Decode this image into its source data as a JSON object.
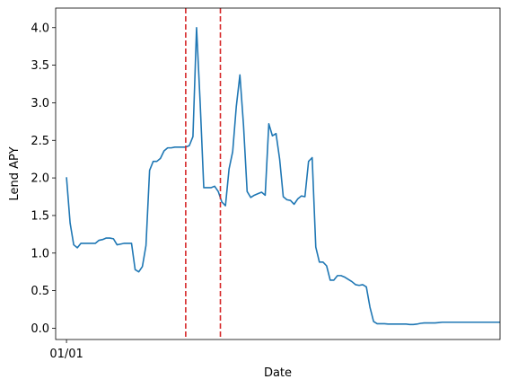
{
  "chart_data": {
    "type": "line",
    "title": "",
    "xlabel": "Date",
    "ylabel": "Lend APY",
    "x_tick_labels": [
      {
        "x": 0,
        "label": "01/01"
      }
    ],
    "xlim": [
      -3,
      120
    ],
    "ylim": [
      -0.15,
      4.26
    ],
    "y_ticks": [
      0.0,
      0.5,
      1.0,
      1.5,
      2.0,
      2.5,
      3.0,
      3.5,
      4.0
    ],
    "grid": false,
    "legend": "none",
    "series": [
      {
        "color": "#1f77b4",
        "x": [
          0,
          1,
          2,
          3,
          4,
          5,
          6,
          7,
          8,
          9,
          10,
          11,
          12,
          13,
          14,
          15,
          16,
          17,
          18,
          19,
          20,
          21,
          22,
          23,
          24,
          25,
          26,
          27,
          28,
          29,
          30,
          31,
          32,
          33,
          34,
          35,
          36,
          37,
          38,
          39,
          40,
          41,
          42,
          43,
          44,
          45,
          46,
          47,
          48,
          49,
          50,
          51,
          52,
          53,
          54,
          55,
          56,
          57,
          58,
          59,
          60,
          61,
          62,
          63,
          64,
          65,
          66,
          67,
          68,
          69,
          70,
          71,
          72,
          73,
          74,
          75,
          76,
          77,
          78,
          79,
          80,
          81,
          82,
          83,
          84,
          85,
          86,
          87,
          88,
          89,
          90,
          91,
          92,
          93,
          94,
          95,
          96,
          97,
          98,
          99,
          100,
          101,
          102,
          103,
          104,
          105,
          106,
          107,
          108,
          109,
          110,
          111,
          112,
          113,
          114,
          115,
          116,
          117,
          118,
          119,
          120
        ],
        "values": [
          2.01,
          1.4,
          1.11,
          1.07,
          1.13,
          1.13,
          1.13,
          1.13,
          1.13,
          1.17,
          1.18,
          1.2,
          1.2,
          1.19,
          1.11,
          1.12,
          1.13,
          1.13,
          1.13,
          0.78,
          0.75,
          0.82,
          1.1,
          2.1,
          2.22,
          2.22,
          2.26,
          2.36,
          2.4,
          2.4,
          2.41,
          2.41,
          2.41,
          2.41,
          2.43,
          2.55,
          4.0,
          3.0,
          1.87,
          1.87,
          1.87,
          1.89,
          1.82,
          1.68,
          1.63,
          2.12,
          2.35,
          2.95,
          3.37,
          2.7,
          1.82,
          1.74,
          1.77,
          1.79,
          1.81,
          1.77,
          2.72,
          2.56,
          2.59,
          2.25,
          1.75,
          1.71,
          1.7,
          1.65,
          1.72,
          1.76,
          1.75,
          2.22,
          2.27,
          1.08,
          0.88,
          0.88,
          0.83,
          0.64,
          0.64,
          0.7,
          0.7,
          0.68,
          0.65,
          0.62,
          0.58,
          0.57,
          0.58,
          0.55,
          0.28,
          0.09,
          0.06,
          0.06,
          0.06,
          0.055,
          0.055,
          0.055,
          0.055,
          0.055,
          0.055,
          0.05,
          0.05,
          0.055,
          0.065,
          0.07,
          0.07,
          0.07,
          0.07,
          0.075,
          0.08,
          0.08,
          0.08,
          0.08,
          0.08,
          0.08,
          0.08,
          0.08,
          0.08,
          0.08,
          0.08,
          0.08,
          0.08,
          0.08,
          0.08,
          0.08,
          0.08
        ]
      }
    ],
    "vertical_lines": [
      {
        "x": 33,
        "color": "#d62728",
        "style": "dashed"
      },
      {
        "x": 42.6,
        "color": "#d62728",
        "style": "dashed"
      }
    ]
  }
}
